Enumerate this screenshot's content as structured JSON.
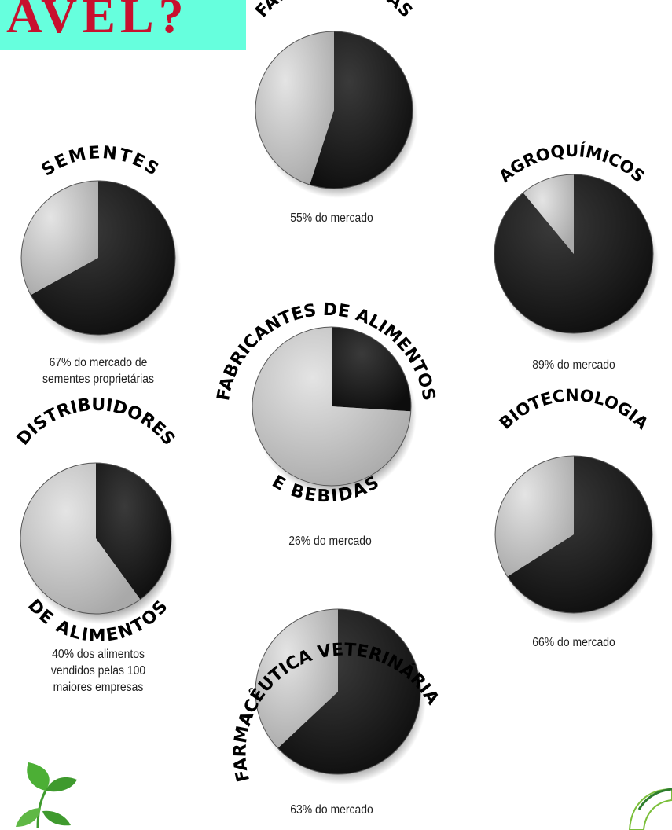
{
  "banner": {
    "text": "AVEL?"
  },
  "colors": {
    "market_share": "#1a1a1a",
    "rest": "#c8c8c8",
    "banner_bg": "#66ffdd",
    "banner_text": "#c8102e",
    "leaf": "#3f9a2e"
  },
  "chart_data": [
    {
      "type": "pie",
      "title": "FARMACÊUTICAS",
      "values": [
        55,
        45
      ],
      "caption": "55% do mercado"
    },
    {
      "type": "pie",
      "title": "SEMENTES",
      "values": [
        67,
        33
      ],
      "caption": "67% do mercado de sementes proprietárias"
    },
    {
      "type": "pie",
      "title": "AGROQUÍMICOS",
      "values": [
        89,
        11
      ],
      "caption": "89% do mercado"
    },
    {
      "type": "pie",
      "title": "FABRICANTES DE ALIMENTOS E BEBIDAS",
      "values": [
        26,
        74
      ],
      "caption": "26% do mercado"
    },
    {
      "type": "pie",
      "title": "DISTRIBUIDORES DE ALIMENTOS",
      "values": [
        40,
        60
      ],
      "caption": "40% dos alimentos vendidos pelas 100 maiores empresas"
    },
    {
      "type": "pie",
      "title": "BIOTECNOLOGIA",
      "values": [
        66,
        34
      ],
      "caption": "66% do mercado"
    },
    {
      "type": "pie",
      "title": "FARMACÊUTICA VETERINÁRIA",
      "values": [
        63,
        37
      ],
      "caption": "63% do mercado"
    }
  ],
  "labels": {
    "farm": "FARMACÊUTICAS",
    "sem": "SEMENTES",
    "agro": "AGROQUÍMICOS",
    "fab_top": "FABRICANTES DE ALIMENTOS",
    "fab_bottom": "E BEBIDAS",
    "dist_top": "DISTRIBUIDORES",
    "dist_bottom": "DE ALIMENTOS",
    "bio": "BIOTECNOLOGIA",
    "vet": "FARMACÊUTICA VETERINÁRIA"
  },
  "captions": {
    "farm": "55% do mercado",
    "sem_1": "67% do mercado de",
    "sem_2": "sementes proprietárias",
    "agro": "89% do mercado",
    "fab": "26% do mercado",
    "dist_1": "40% dos alimentos",
    "dist_2": "vendidos pelas 100",
    "dist_3": "maiores empresas",
    "bio": "66% do mercado",
    "vet": "63% do mercado"
  }
}
